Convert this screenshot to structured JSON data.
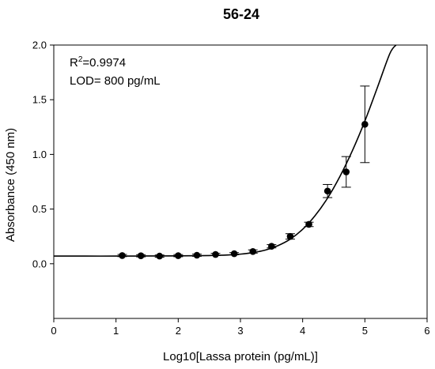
{
  "chart_data": {
    "type": "scatter",
    "title": "56-24",
    "xlabel": "Log10[Lassa protein (pg/mL)]",
    "ylabel": "Absorbance (450 nm)",
    "xlim": [
      0,
      6
    ],
    "ylim": [
      -0.5,
      2.0
    ],
    "xticks": [
      0,
      1,
      2,
      3,
      4,
      5,
      6
    ],
    "xtick_labels": [
      "0",
      "1",
      "2",
      "3",
      "4",
      "5",
      "6"
    ],
    "yticks": [
      0.0,
      0.5,
      1.0,
      1.5,
      2.0
    ],
    "ytick_labels": [
      "0.0",
      "0.5",
      "1.0",
      "1.5",
      "2.0"
    ],
    "grid": false,
    "annotations": {
      "r2_base": "R",
      "r2_sup": "2",
      "r2_value": "=0.9974",
      "lod": "LOD= 800 pg/mL"
    },
    "series": [
      {
        "x": [
          1.1,
          1.4,
          1.7,
          2.0,
          2.3,
          2.6,
          2.9,
          3.2,
          3.5,
          3.8,
          4.1,
          4.4,
          4.7,
          5.0
        ],
        "y": [
          0.075,
          0.073,
          0.07,
          0.074,
          0.078,
          0.085,
          0.092,
          0.112,
          0.16,
          0.25,
          0.36,
          0.665,
          0.84,
          1.275
        ],
        "error": [
          0.01,
          0.01,
          0.01,
          0.01,
          0.01,
          0.01,
          0.01,
          0.015,
          0.015,
          0.025,
          0.02,
          0.06,
          0.14,
          0.35
        ]
      }
    ],
    "fit": {
      "x": [
        0.0,
        0.5,
        1.0,
        1.5,
        2.0,
        2.5,
        2.8,
        3.0,
        3.2,
        3.4,
        3.6,
        3.8,
        4.0,
        4.2,
        4.4,
        4.6,
        4.8,
        5.0,
        5.2,
        5.4,
        5.5
      ],
      "y": [
        0.07,
        0.07,
        0.07,
        0.071,
        0.072,
        0.075,
        0.08,
        0.088,
        0.102,
        0.125,
        0.165,
        0.225,
        0.315,
        0.44,
        0.6,
        0.8,
        1.035,
        1.305,
        1.61,
        1.92,
        2.0
      ]
    }
  }
}
